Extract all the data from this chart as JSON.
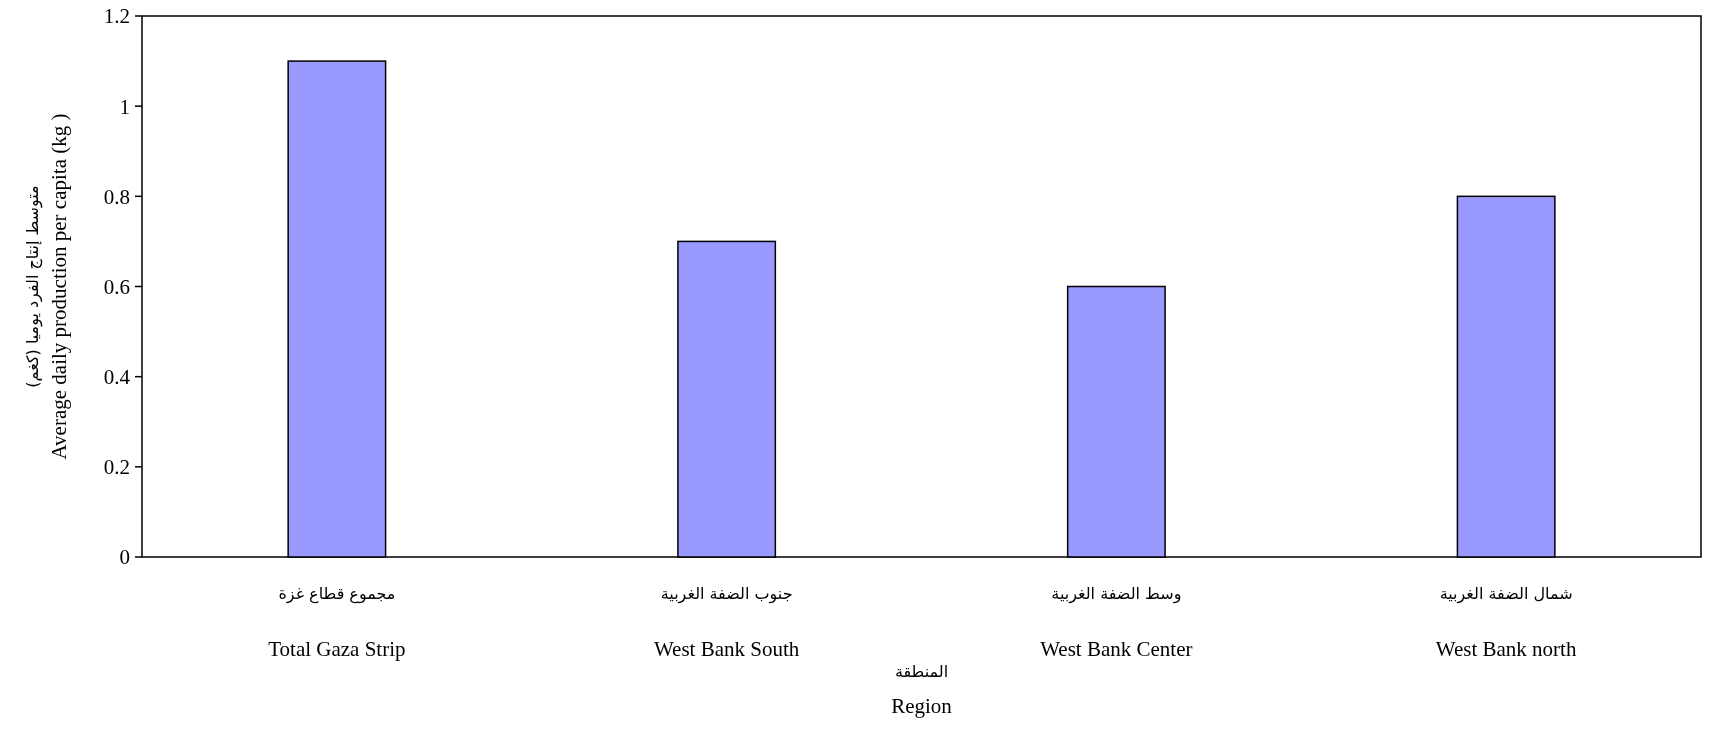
{
  "chart_data": {
    "type": "bar",
    "categories": [
      "مجموع قطاع غزة\nTotal Gaza Strip",
      "جنوب الضفة الغربية\nWest Bank South",
      "وسط الضفة الغربية\nWest Bank Center",
      "شمال الضفة الغربية\nWest Bank north"
    ],
    "values": [
      1.1,
      0.7,
      0.6,
      0.8
    ],
    "color": "#9999ff",
    "xlabel": "المنطقة\nRegion",
    "ylabel": "متوسط إنتاج الفرد يوميا (كغم)\nAverage daily production per capita (kg )",
    "ylim": [
      0,
      1.2
    ],
    "yticks": [
      0,
      0.2,
      0.4,
      0.6,
      0.8,
      1,
      1.2
    ],
    "grid": false
  }
}
